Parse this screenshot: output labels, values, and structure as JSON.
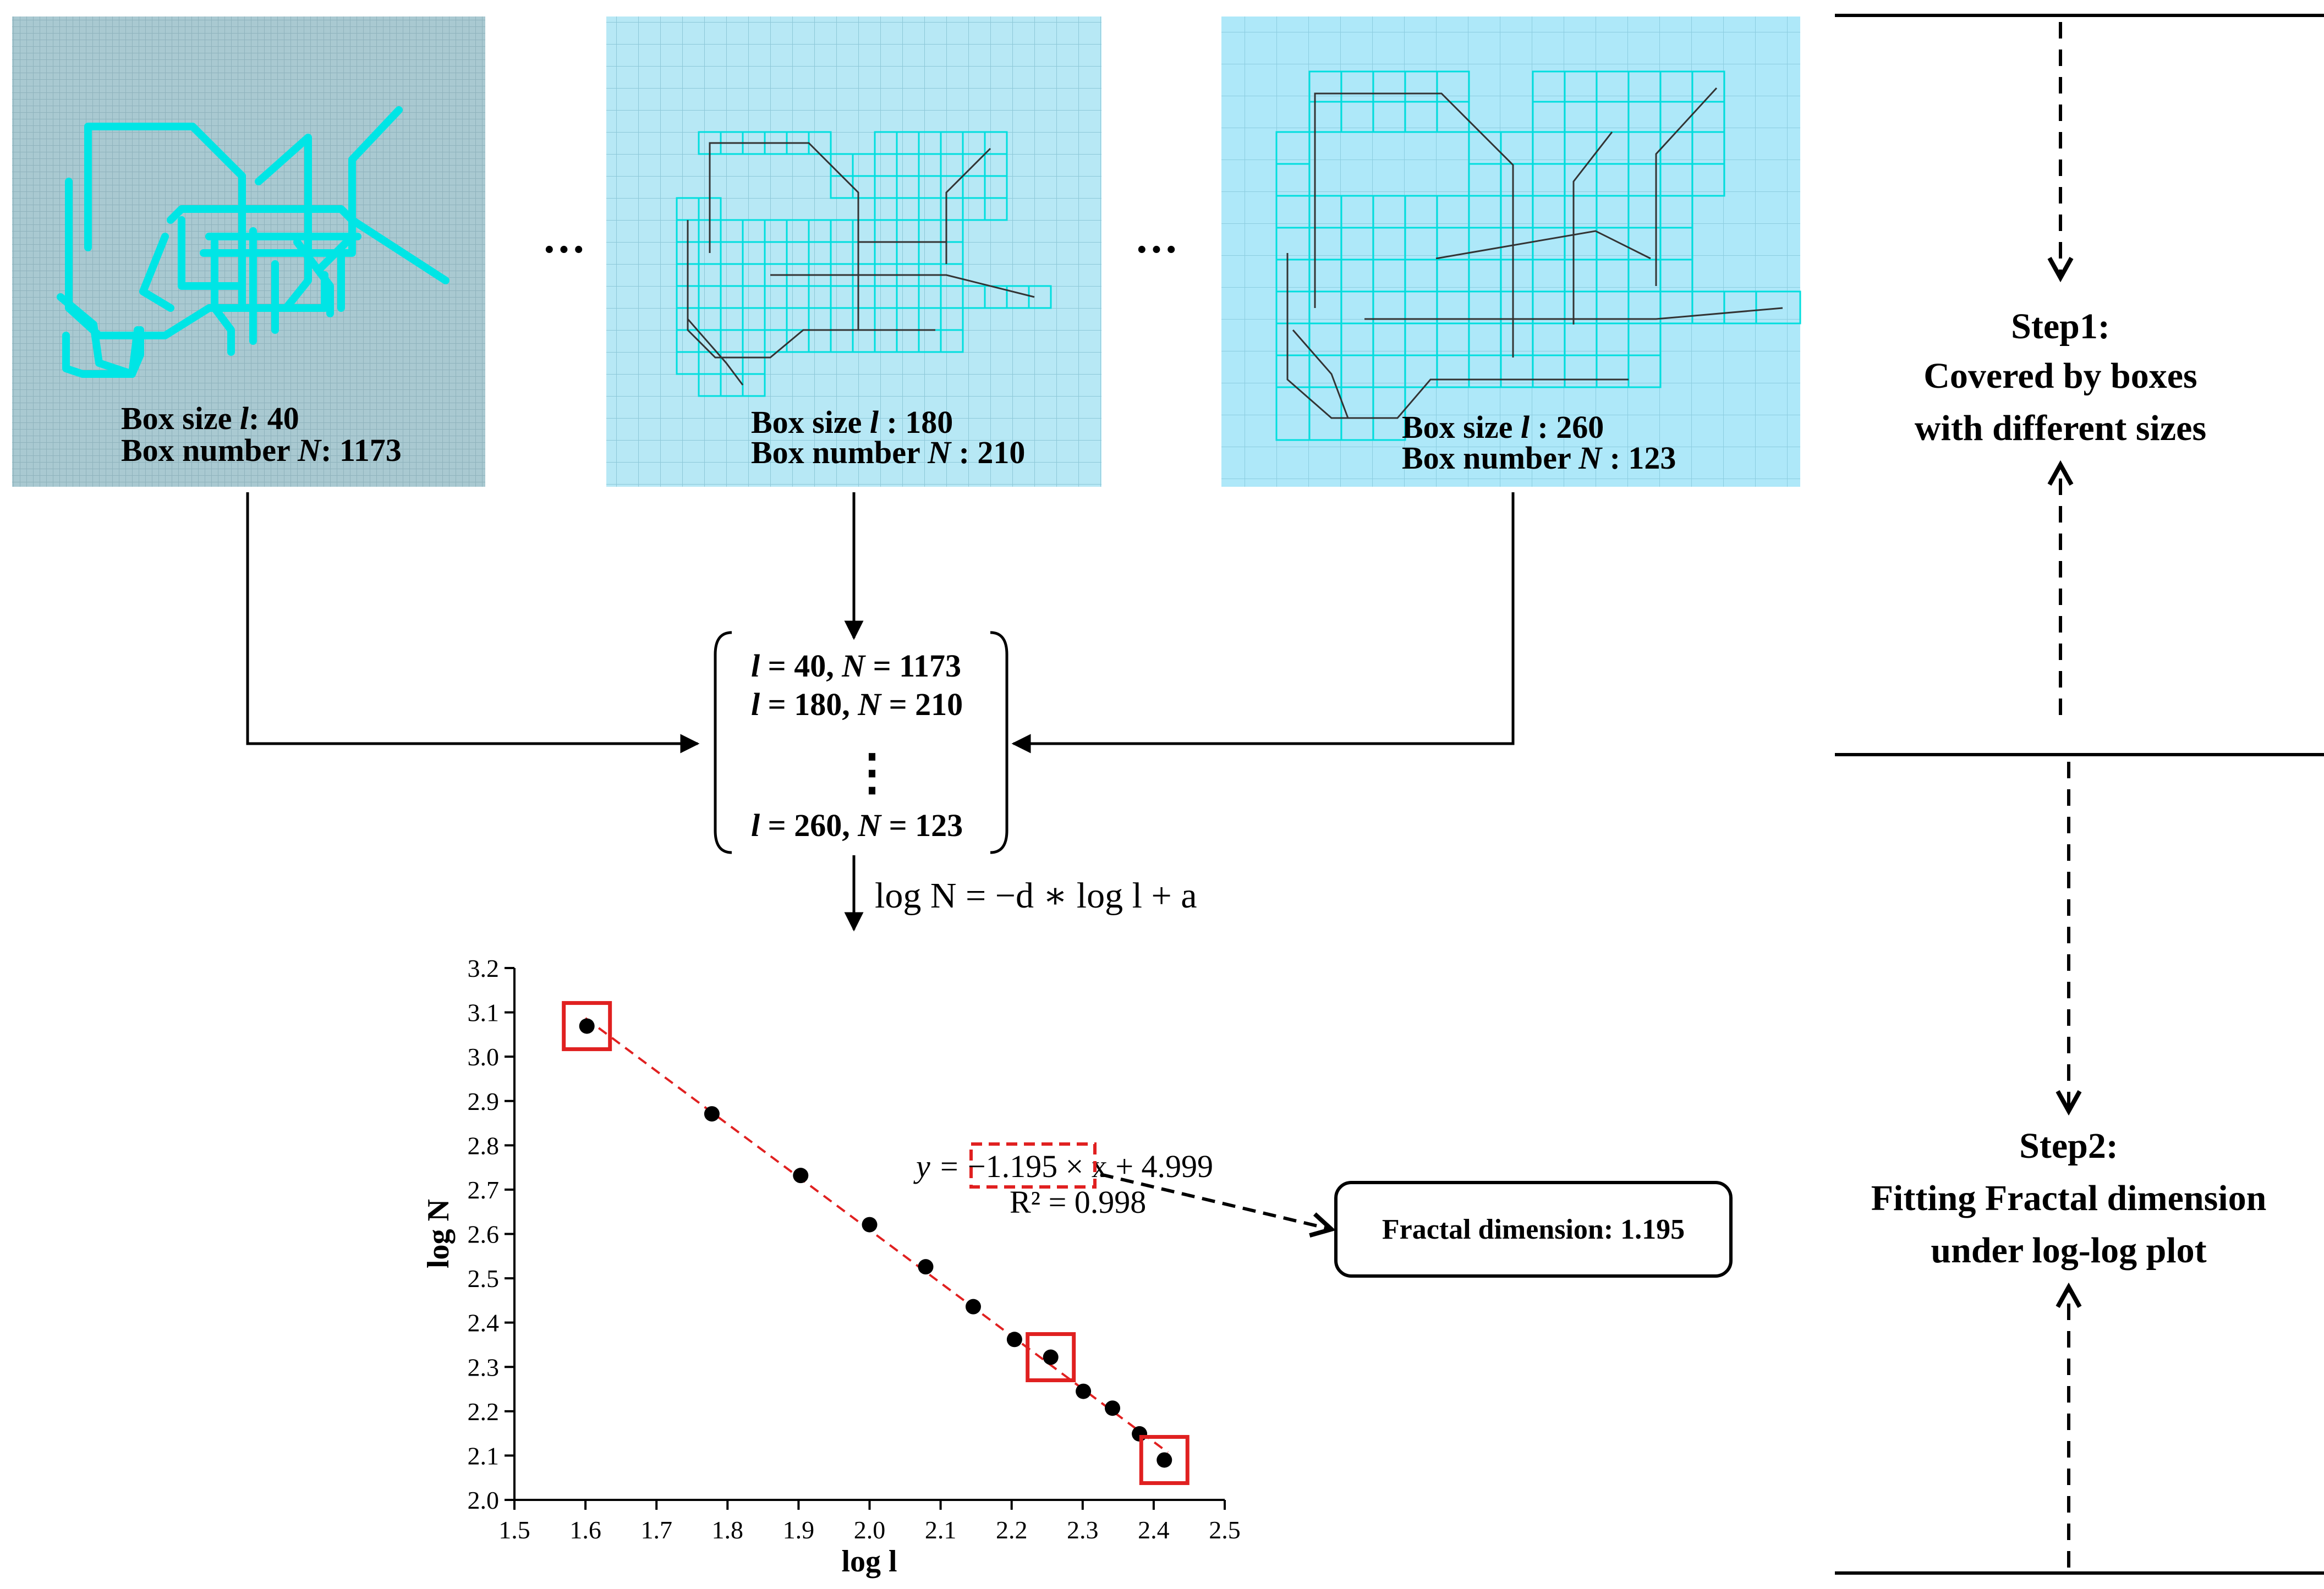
{
  "panels": [
    {
      "size_label": "Box size ",
      "size_var": "l",
      "size_value": ": 40",
      "number_label": "Box number ",
      "number_var": "N",
      "number_value": ": 1173",
      "grid": "fine",
      "bg": "#a9c9d1"
    },
    {
      "size_label": "Box size ",
      "size_var": "l",
      "size_value": " : 180",
      "number_label": "Box number ",
      "number_var": "N",
      "number_value": " : 210",
      "grid": "medium",
      "bg": "#b7e8f5"
    },
    {
      "size_label": "Box size ",
      "size_var": "l",
      "size_value": " : 260",
      "number_label": "Box number ",
      "number_var": "N",
      "number_value": " : 123",
      "grid": "coarse",
      "bg": "#aee8f9"
    }
  ],
  "ellipsis": "···",
  "matrix": {
    "rows": [
      {
        "l": "40",
        "N": "1173"
      },
      {
        "l": "180",
        "N": "210"
      },
      {
        "l": "260",
        "N": "123"
      }
    ],
    "dots": "⋮"
  },
  "formula": "log N = −d ∗ log l + a",
  "fit": {
    "equation_prefix": "y = ",
    "slope": "−1.195",
    "equation_suffix": " × x + 4.999",
    "r2": "R² = 0.998"
  },
  "result_box": "Fractal dimension: 1.195",
  "steps": [
    {
      "title": "Step1:",
      "line1": "Covered by boxes",
      "line2": "with different sizes"
    },
    {
      "title": "Step2:",
      "line1": "Fitting Fractal dimension",
      "line2": "under log-log plot"
    }
  ],
  "colors": {
    "cyan": "#00e5e5",
    "red": "#e02020",
    "dark": "#000000"
  },
  "chart_data": {
    "type": "scatter",
    "xlabel": "log l",
    "ylabel": "log N",
    "xlim": [
      1.5,
      2.5
    ],
    "ylim": [
      2.0,
      3.2
    ],
    "xticks": [
      "1.5",
      "1.6",
      "1.7",
      "1.8",
      "1.9",
      "2.0",
      "2.1",
      "2.2",
      "2.3",
      "2.4",
      "2.5"
    ],
    "yticks": [
      "2.0",
      "2.1",
      "2.2",
      "2.3",
      "2.4",
      "2.5",
      "2.6",
      "2.7",
      "2.8",
      "2.9",
      "3.0",
      "3.1",
      "3.2"
    ],
    "x": [
      1.602,
      1.778,
      1.903,
      2.0,
      2.079,
      2.146,
      2.204,
      2.255,
      2.301,
      2.342,
      2.38,
      2.415
    ],
    "y": [
      3.069,
      2.871,
      2.732,
      2.621,
      2.526,
      2.436,
      2.362,
      2.322,
      2.245,
      2.207,
      2.149,
      2.09
    ],
    "highlighted_indices": [
      0,
      7,
      11
    ],
    "fit_line": {
      "slope": -1.195,
      "intercept": 4.999,
      "x_range": [
        1.6,
        2.42
      ]
    }
  }
}
